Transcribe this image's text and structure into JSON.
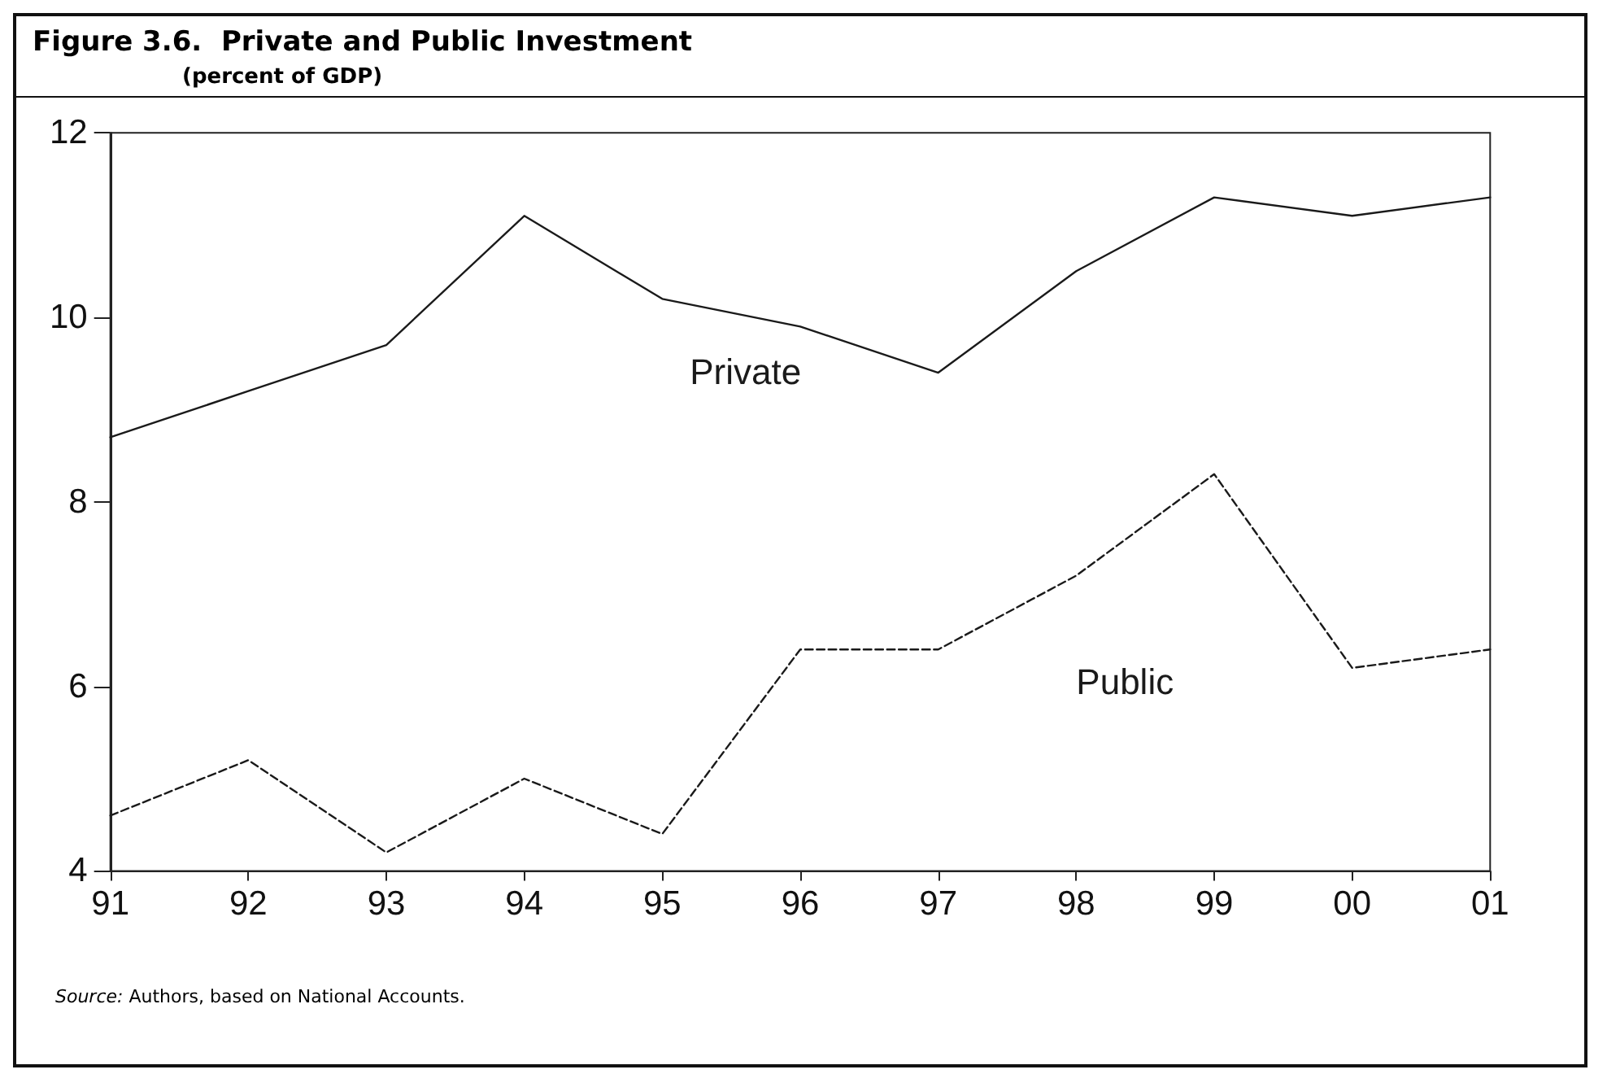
{
  "chart_data": {
    "type": "line",
    "title": "Figure 3.6.  Private and Public Investment",
    "subtitle": "(percent of GDP)",
    "annotations": [
      "Source: Authors, based on National Accounts."
    ],
    "categories": [
      "91",
      "92",
      "93",
      "94",
      "95",
      "96",
      "97",
      "98",
      "99",
      "00",
      "01"
    ],
    "series": [
      {
        "name": "Private",
        "color": "#1a1a1a",
        "line_style": "solid",
        "values": [
          8.7,
          9.2,
          9.7,
          11.1,
          10.2,
          9.9,
          9.4,
          10.5,
          11.3,
          11.1,
          11.3
        ]
      },
      {
        "name": "Public",
        "color": "#1a1a1a",
        "line_style": "dashed",
        "values": [
          4.6,
          5.2,
          4.2,
          5.0,
          4.4,
          6.4,
          6.4,
          7.2,
          8.3,
          6.2,
          6.4
        ]
      }
    ],
    "ylim": [
      4,
      12
    ],
    "yticks": [
      4,
      6,
      8,
      10,
      12
    ],
    "grid": false,
    "legend": false,
    "marker": "none"
  }
}
